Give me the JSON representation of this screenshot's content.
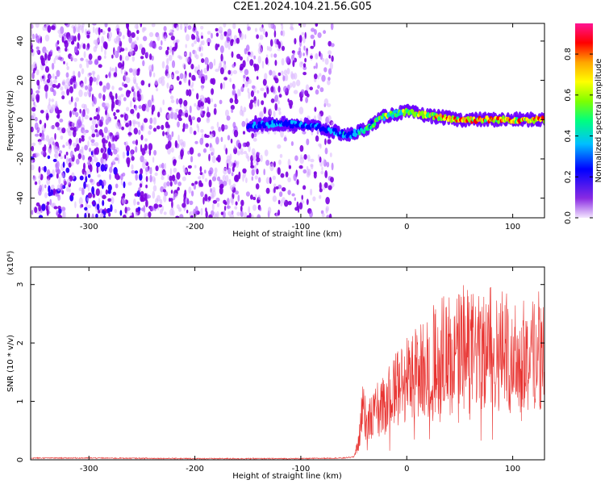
{
  "title": "C2E1.2024.104.21.56.G05",
  "chart_data": [
    {
      "type": "heatmap",
      "title": "C2E1.2024.104.21.56.G05",
      "xlabel": "Height of straight line (km)",
      "ylabel": "Frequency (Hz)",
      "xlim": [
        -355,
        130
      ],
      "ylim": [
        -50,
        49
      ],
      "xticks": [
        -300,
        -200,
        -100,
        0,
        100
      ],
      "yticks": [
        -40,
        -20,
        0,
        20,
        40
      ],
      "colorbar": {
        "label": "Normalized spectral amplitude",
        "range": [
          0.0,
          0.95
        ],
        "ticks": [
          0.0,
          0.2,
          0.4,
          0.6,
          0.8
        ],
        "colormap": [
          "#f3e6ff",
          "#8a2be2",
          "#0000ff",
          "#00bfff",
          "#00ff7f",
          "#7fff00",
          "#ffff00",
          "#ffa500",
          "#ff0000",
          "#ff1493"
        ]
      },
      "signal_track": [
        {
          "x": -150,
          "y": -3,
          "amp": 0.3
        },
        {
          "x": -120,
          "y": -2,
          "amp": 0.35
        },
        {
          "x": -90,
          "y": -3,
          "amp": 0.3
        },
        {
          "x": -70,
          "y": -6,
          "amp": 0.35
        },
        {
          "x": -55,
          "y": -8,
          "amp": 0.4
        },
        {
          "x": -40,
          "y": -5,
          "amp": 0.45
        },
        {
          "x": -20,
          "y": 2,
          "amp": 0.55
        },
        {
          "x": 0,
          "y": 4,
          "amp": 0.6
        },
        {
          "x": 20,
          "y": 2,
          "amp": 0.7
        },
        {
          "x": 50,
          "y": 0,
          "amp": 0.85
        },
        {
          "x": 80,
          "y": 0,
          "amp": 0.8
        },
        {
          "x": 110,
          "y": 0,
          "amp": 0.8
        },
        {
          "x": 130,
          "y": 0,
          "amp": 0.8
        }
      ],
      "noise_region": {
        "x": [
          -355,
          -70
        ],
        "amp_max": 0.3
      }
    },
    {
      "type": "line",
      "xlabel": "Height of straight line (km)",
      "ylabel": "SNR (10 * v/v)",
      "y_multiplier": "(x10⁴)",
      "xlim": [
        -355,
        130
      ],
      "ylim": [
        0,
        3.3
      ],
      "xticks": [
        -300,
        -200,
        -100,
        0,
        100
      ],
      "yticks": [
        0,
        1,
        2,
        3
      ],
      "color": "#e8322f",
      "series": [
        {
          "x": [
            -355,
            -300,
            -200,
            -100,
            -60,
            -50,
            -45,
            -42,
            -38,
            -30,
            -20,
            -10,
            0,
            10,
            20,
            30,
            40,
            50,
            60,
            70,
            80,
            90,
            100,
            110,
            120,
            130
          ],
          "y": [
            0.03,
            0.03,
            0.02,
            0.02,
            0.03,
            0.05,
            0.3,
            0.9,
            0.6,
            0.8,
            0.9,
            1.2,
            1.4,
            1.5,
            1.6,
            1.7,
            1.8,
            1.85,
            1.9,
            1.8,
            1.85,
            1.8,
            1.75,
            1.7,
            1.8,
            1.8
          ]
        }
      ]
    }
  ]
}
